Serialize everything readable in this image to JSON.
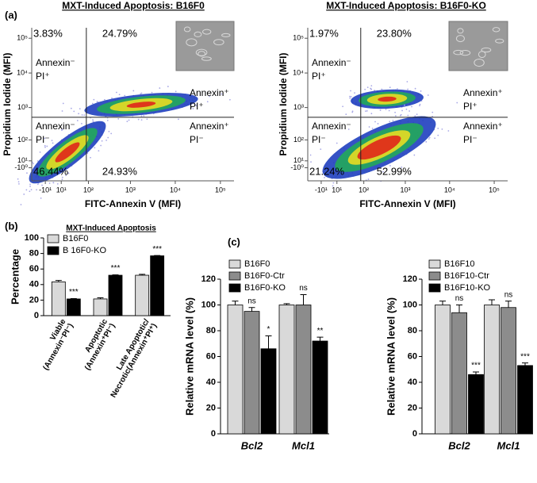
{
  "panel_labels": [
    "(a)",
    "(b)",
    "(c)"
  ],
  "panel_a": {
    "plots": [
      {
        "title": "MXT-Induced Apoptosis: B16F0",
        "xlabel": "FITC-Annexin V (MFI)",
        "ylabel": "Propidium Iodide (MFI)",
        "xlim": [
          -40,
          200000
        ],
        "ylim": [
          -30,
          200000
        ],
        "xticks": [
          {
            "value": -10,
            "label": "-10¹"
          },
          {
            "value": 10,
            "label": "10¹"
          },
          {
            "value": 100,
            "label": "10²"
          },
          {
            "value": 1000,
            "label": "10³"
          },
          {
            "value": 10000,
            "label": "10⁴"
          },
          {
            "value": 100000,
            "label": "10⁵"
          }
        ],
        "yticks": [
          {
            "value": -1,
            "label": "-10⁰"
          },
          {
            "value": 10,
            "label": "10¹"
          },
          {
            "value": 100,
            "label": "10²"
          },
          {
            "value": 1000,
            "label": "10³"
          },
          {
            "value": 10000,
            "label": "10⁴"
          },
          {
            "value": 100000,
            "label": "10⁵"
          }
        ],
        "quadrants": [
          {
            "percent": "3.83%",
            "label": [
              "Annexin⁻",
              "PI⁺"
            ]
          },
          {
            "percent": "24.79%",
            "label": [
              "Annexin⁺",
              "PI⁺"
            ]
          },
          {
            "percent": "46.44%",
            "label": [
              "Annexin⁻",
              "PI⁻"
            ]
          },
          {
            "percent": "24.93%",
            "label": [
              "Annexin⁺",
              "PI⁻"
            ]
          }
        ]
      },
      {
        "title": "MXT-Induced Apoptosis: B16F0-KO",
        "xlabel": "FITC-Annexin V (MFI)",
        "ylabel": "Propidium Iodide (MFI)",
        "xlim": [
          -40,
          200000
        ],
        "ylim": [
          -30,
          200000
        ],
        "xticks": [
          {
            "value": -10,
            "label": "-10¹"
          },
          {
            "value": 10,
            "label": "10¹"
          },
          {
            "value": 100,
            "label": "10²"
          },
          {
            "value": 1000,
            "label": "10³"
          },
          {
            "value": 10000,
            "label": "10⁴"
          },
          {
            "value": 100000,
            "label": "10⁵"
          }
        ],
        "yticks": [
          {
            "value": -1,
            "label": "-10⁰"
          },
          {
            "value": 10,
            "label": "10¹"
          },
          {
            "value": 100,
            "label": "10²"
          },
          {
            "value": 1000,
            "label": "10³"
          },
          {
            "value": 10000,
            "label": "10⁴"
          },
          {
            "value": 100000,
            "label": "10⁵"
          }
        ],
        "quadrants": [
          {
            "percent": "1.97%",
            "label": [
              "Annexin⁻",
              "PI⁺"
            ]
          },
          {
            "percent": "23.80%",
            "label": [
              "Annexin⁺",
              "PI⁺"
            ]
          },
          {
            "percent": "21.24%",
            "label": [
              "Annexin⁻",
              "PI⁻"
            ]
          },
          {
            "percent": "52.99%",
            "label": [
              "Annexin⁺",
              "PI⁻"
            ]
          }
        ]
      }
    ]
  },
  "chart_data": [
    {
      "type": "bar",
      "title": "MXT-Induced Apoptosis",
      "ylabel": "Percentage",
      "categories": [
        [
          "Viable",
          "(Annexin⁻PI⁻)"
        ],
        [
          "Apoptotic",
          "(Annexin⁺PI⁻)"
        ],
        [
          "Late Apoptotic/",
          "Necrotic(Annexin⁺PI⁺)"
        ]
      ],
      "series": [
        {
          "name": "B16F0",
          "color": "#d9d9d9",
          "values": [
            43.5,
            21.5,
            52
          ],
          "errors": [
            1.8,
            1.5,
            1.2
          ],
          "labels": [
            null,
            null,
            null
          ]
        },
        {
          "name": "B 16F0-KO",
          "color": "#000000",
          "values": [
            21.5,
            52,
            77
          ],
          "errors": [
            0.5,
            0.5,
            0.4
          ],
          "labels": [
            "***",
            "***",
            "***"
          ]
        }
      ],
      "ylim": [
        0,
        100
      ],
      "yticks": [
        0,
        20,
        40,
        60,
        80,
        100
      ]
    },
    {
      "type": "bar",
      "ylabel": "Relative mRNA level (%)",
      "categories": [
        [
          "Bcl2"
        ],
        [
          "Mcl1"
        ]
      ],
      "series": [
        {
          "name": "B16F0",
          "color": "#d9d9d9",
          "values": [
            100,
            100
          ],
          "errors": [
            3,
            1
          ],
          "labels": [
            null,
            null
          ]
        },
        {
          "name": "B16F0-Ctr",
          "color": "#8c8c8c",
          "values": [
            95,
            100
          ],
          "errors": [
            3,
            8
          ],
          "labels": [
            "ns",
            "ns"
          ]
        },
        {
          "name": "B16F0-KO",
          "color": "#000000",
          "values": [
            66,
            72
          ],
          "errors": [
            10,
            3
          ],
          "labels": [
            "*",
            "**"
          ]
        }
      ],
      "ylim": [
        0,
        120
      ],
      "yticks": [
        0,
        20,
        40,
        60,
        80,
        100,
        120
      ]
    },
    {
      "type": "bar",
      "ylabel": "Relative mRNA level (%)",
      "categories": [
        [
          "Bcl2"
        ],
        [
          "Mcl1"
        ]
      ],
      "series": [
        {
          "name": "B16F10",
          "color": "#d9d9d9",
          "values": [
            100,
            100
          ],
          "errors": [
            3,
            4
          ],
          "labels": [
            null,
            null
          ]
        },
        {
          "name": "B16F10-Ctr",
          "color": "#8c8c8c",
          "values": [
            94,
            98
          ],
          "errors": [
            6,
            5
          ],
          "labels": [
            "ns",
            "ns"
          ]
        },
        {
          "name": "B16F10-KO",
          "color": "#000000",
          "values": [
            46,
            53
          ],
          "errors": [
            2,
            2
          ],
          "labels": [
            "***",
            "***"
          ]
        }
      ],
      "ylim": [
        0,
        120
      ],
      "yticks": [
        0,
        20,
        40,
        60,
        80,
        100,
        120
      ]
    }
  ]
}
